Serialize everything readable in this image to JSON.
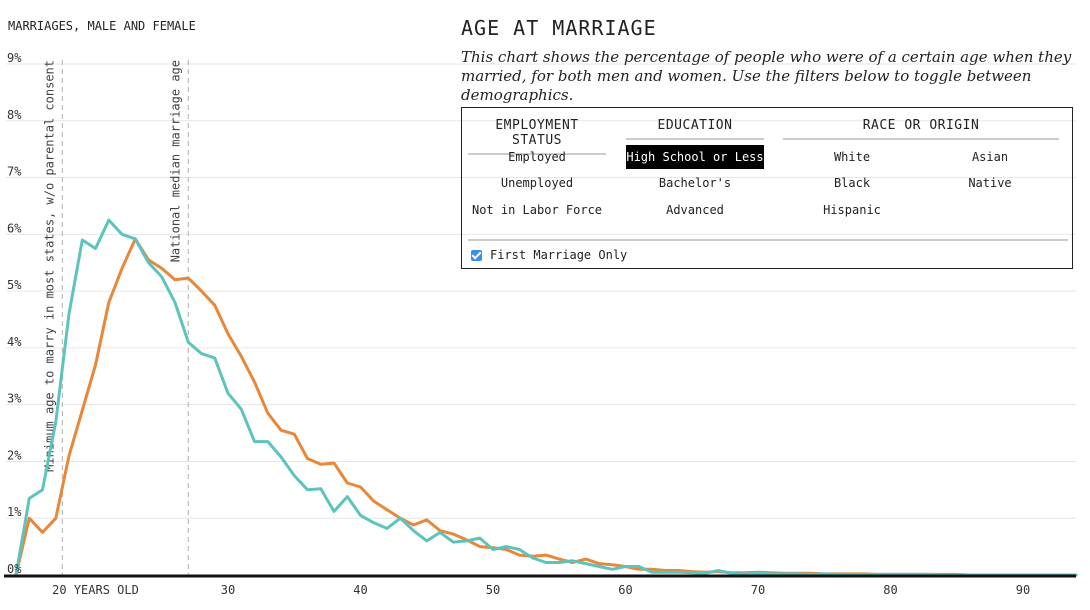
{
  "page": {
    "title": "AGE AT MARRIAGE",
    "description": "This chart shows the percentage of people who were of a certain age when they married, for both men and women. Use the filters below to toggle between demographics."
  },
  "filters": {
    "employment": {
      "title": "EMPLOYMENT STATUS",
      "options": [
        "Employed",
        "Unemployed",
        "Not in Labor Force"
      ]
    },
    "education": {
      "title": "EDUCATION",
      "options": [
        "High School or Less",
        "Bachelor's",
        "Advanced"
      ],
      "selected": "High School or Less"
    },
    "race": {
      "title": "RACE OR ORIGIN",
      "options": [
        "White",
        "Asian",
        "Black",
        "Native",
        "Hispanic"
      ]
    },
    "first_marriage": {
      "label": "First Marriage Only",
      "checked": true,
      "color": "#3b8ee8"
    }
  },
  "chart_data": {
    "type": "line",
    "ylabel": "MARRIAGES, MALE AND FEMALE",
    "ylim": [
      0,
      9
    ],
    "xlim": [
      14,
      94
    ],
    "yticks": [
      "0%",
      "1%",
      "2%",
      "3%",
      "4%",
      "5%",
      "6%",
      "7%",
      "8%",
      "9%"
    ],
    "ytick_values": [
      0,
      1,
      2,
      3,
      4,
      5,
      6,
      7,
      8,
      9
    ],
    "xticks": [
      "20 YEARS OLD",
      "30",
      "40",
      "50",
      "60",
      "70",
      "80",
      "90"
    ],
    "xtick_values": [
      20,
      30,
      40,
      50,
      60,
      70,
      80,
      90
    ],
    "grid": true,
    "annotations": [
      {
        "x": 17.5,
        "label": "Minimum age to marry in most states, w/o parental consent"
      },
      {
        "x": 27,
        "label": "National median marriage age"
      }
    ],
    "series": [
      {
        "color": "#e8873a",
        "x": [
          14,
          15,
          16,
          17,
          18,
          19,
          20,
          21,
          22,
          23,
          24,
          25,
          26,
          27,
          28,
          29,
          30,
          31,
          32,
          33,
          34,
          35,
          36,
          37,
          38,
          39,
          40,
          41,
          42,
          43,
          44,
          45,
          46,
          47,
          48,
          49,
          50,
          51,
          52,
          53,
          54,
          55,
          56,
          57,
          58,
          59,
          60,
          61,
          62,
          63,
          64,
          65,
          66,
          67,
          68,
          69,
          70,
          71,
          72,
          73,
          74,
          75,
          76,
          77,
          78,
          79,
          80,
          81,
          82,
          83,
          84,
          85,
          86,
          87,
          88,
          89,
          90,
          91,
          92,
          93,
          94
        ],
        "values": [
          0,
          1.0,
          0.75,
          1.0,
          2.1,
          2.9,
          3.7,
          4.8,
          5.4,
          5.92,
          5.55,
          5.4,
          5.2,
          5.23,
          5.0,
          4.75,
          4.25,
          3.85,
          3.4,
          2.85,
          2.55,
          2.48,
          2.05,
          1.95,
          1.97,
          1.62,
          1.55,
          1.3,
          1.15,
          1.0,
          0.88,
          0.97,
          0.78,
          0.72,
          0.62,
          0.5,
          0.48,
          0.45,
          0.35,
          0.33,
          0.35,
          0.28,
          0.22,
          0.28,
          0.2,
          0.18,
          0.15,
          0.1,
          0.1,
          0.08,
          0.08,
          0.06,
          0.05,
          0.06,
          0.04,
          0.04,
          0.05,
          0.04,
          0.03,
          0.03,
          0.03,
          0.02,
          0.02,
          0.02,
          0.02,
          0.01,
          0.01,
          0.01,
          0.01,
          0.01,
          0.01,
          0.01,
          0,
          0,
          0,
          0,
          0,
          0,
          0,
          0,
          0
        ]
      },
      {
        "color": "#5cc3bd",
        "x": [
          14,
          15,
          16,
          17,
          18,
          19,
          20,
          21,
          22,
          23,
          24,
          25,
          26,
          27,
          28,
          29,
          30,
          31,
          32,
          33,
          34,
          35,
          36,
          37,
          38,
          39,
          40,
          41,
          42,
          43,
          44,
          45,
          46,
          47,
          48,
          49,
          50,
          51,
          52,
          53,
          54,
          55,
          56,
          57,
          58,
          59,
          60,
          61,
          62,
          63,
          64,
          65,
          66,
          67,
          68,
          69,
          70,
          71,
          72,
          73,
          74,
          75,
          76,
          77,
          78,
          79,
          80,
          81,
          82,
          83,
          84,
          85,
          86,
          87,
          88,
          89,
          90,
          91,
          92,
          93,
          94
        ],
        "values": [
          0,
          1.35,
          1.5,
          2.7,
          4.6,
          5.9,
          5.75,
          6.25,
          6.0,
          5.92,
          5.5,
          5.25,
          4.8,
          4.1,
          3.9,
          3.82,
          3.2,
          2.92,
          2.35,
          2.35,
          2.08,
          1.75,
          1.5,
          1.52,
          1.12,
          1.38,
          1.05,
          0.92,
          0.82,
          1.0,
          0.78,
          0.6,
          0.75,
          0.58,
          0.6,
          0.65,
          0.45,
          0.5,
          0.45,
          0.3,
          0.22,
          0.22,
          0.25,
          0.2,
          0.15,
          0.1,
          0.15,
          0.15,
          0.05,
          0.05,
          0.05,
          0.04,
          0.03,
          0.08,
          0.03,
          0.02,
          0.03,
          0.02,
          0.02,
          0.02,
          0.01,
          0.02,
          0.01,
          0.01,
          0.01,
          0.01,
          0.01,
          0.01,
          0.01,
          0.01,
          0,
          0,
          0,
          0,
          0,
          0,
          0,
          0,
          0,
          0,
          0
        ]
      }
    ]
  }
}
